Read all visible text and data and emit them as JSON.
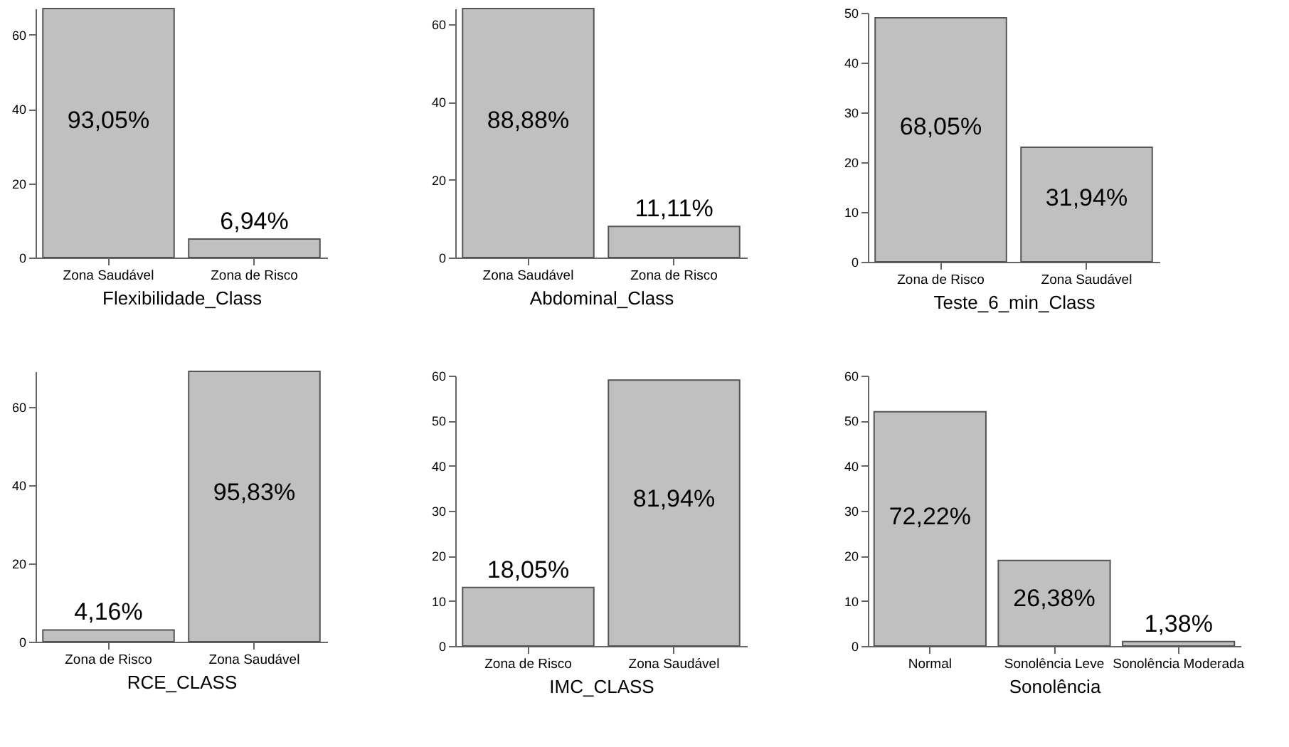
{
  "chart_data": [
    {
      "type": "bar",
      "xlabel": "Flexibilidade_Class",
      "categories": [
        "Zona Saudável",
        "Zona de Risco"
      ],
      "values": [
        67,
        5
      ],
      "annotations": [
        "93,05%",
        "6,94%"
      ],
      "color": "#c0c0c0",
      "ylim": [
        0,
        67
      ],
      "yticks": [
        0,
        20,
        40,
        60
      ]
    },
    {
      "type": "bar",
      "xlabel": "Abdominal_Class",
      "categories": [
        "Zona Saudável",
        "Zona de Risco"
      ],
      "values": [
        64,
        8
      ],
      "annotations": [
        "88,88%",
        "11,11%"
      ],
      "color": "#c0c0c0",
      "ylim": [
        0,
        64
      ],
      "yticks": [
        0,
        20,
        40,
        60
      ]
    },
    {
      "type": "bar",
      "xlabel": "Teste_6_min_Class",
      "categories": [
        "Zona de Risco",
        "Zona Saudável"
      ],
      "values": [
        49,
        23
      ],
      "annotations": [
        "68,05%",
        "31,94%"
      ],
      "color": "#c0c0c0",
      "ylim": [
        0,
        50
      ],
      "yticks": [
        0,
        10,
        20,
        30,
        40,
        50
      ]
    },
    {
      "type": "bar",
      "xlabel": "RCE_CLASS",
      "categories": [
        "Zona de Risco",
        "Zona Saudável"
      ],
      "values": [
        3,
        69
      ],
      "annotations": [
        "4,16%",
        "95,83%"
      ],
      "color": "#c0c0c0",
      "ylim": [
        0,
        69
      ],
      "yticks": [
        0,
        20,
        40,
        60
      ]
    },
    {
      "type": "bar",
      "xlabel": "IMC_CLASS",
      "categories": [
        "Zona de Risco",
        "Zona Saudável"
      ],
      "values": [
        13,
        59
      ],
      "annotations": [
        "18,05%",
        "81,94%"
      ],
      "color": "#c0c0c0",
      "ylim": [
        0,
        60
      ],
      "yticks": [
        0,
        10,
        20,
        30,
        40,
        50,
        60
      ]
    },
    {
      "type": "bar",
      "xlabel": "Sonolência",
      "categories": [
        "Normal",
        "Sonolência Leve",
        "Sonolência Moderada"
      ],
      "values": [
        52,
        19,
        1
      ],
      "annotations": [
        "72,22%",
        "26,38%",
        "1,38%"
      ],
      "color": "#c0c0c0",
      "ylim": [
        0,
        60
      ],
      "yticks": [
        0,
        10,
        20,
        30,
        40,
        50,
        60
      ]
    }
  ]
}
